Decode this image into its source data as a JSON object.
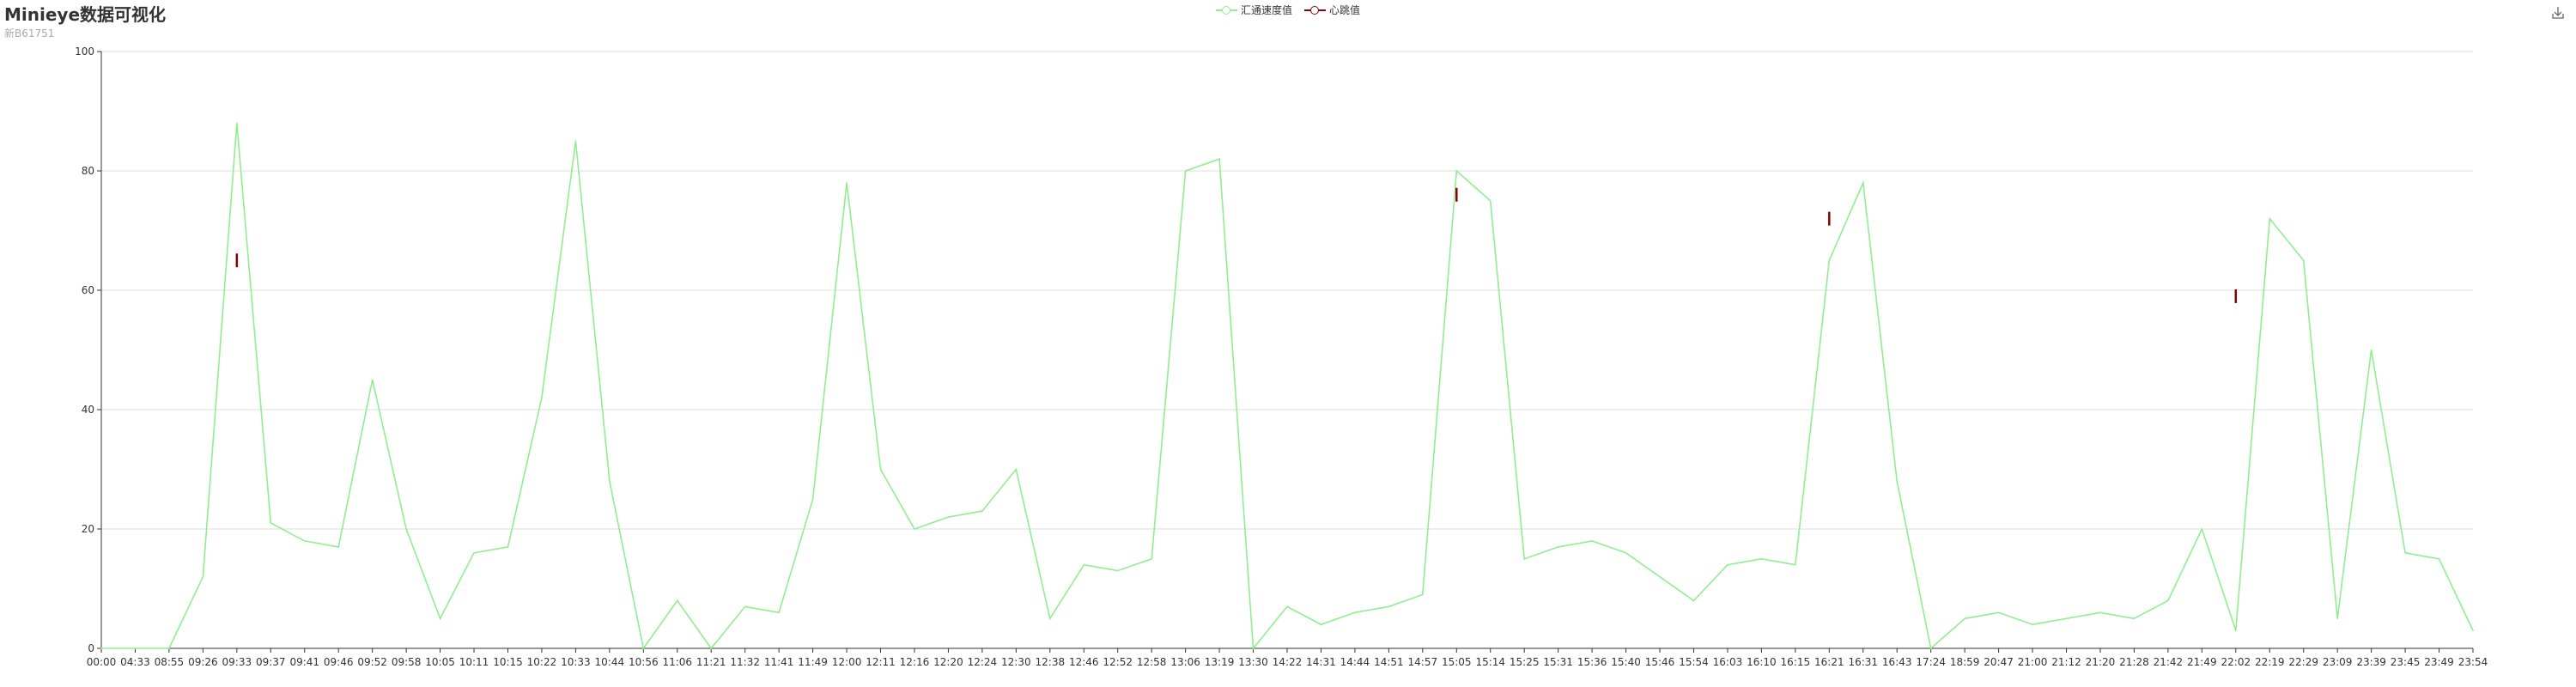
{
  "header": {
    "title": "Minieye数据可视化",
    "subtitle": "新B61751"
  },
  "toolbox": {
    "icon": "download-icon"
  },
  "colors": {
    "series0": "#90ee90",
    "series1": "#8b0000",
    "grid": "#dddddd",
    "axis": "#333333"
  },
  "chart_data": {
    "type": "line",
    "title": "Minieye数据可视化",
    "subtitle": "新B61751",
    "legend_position": "top-center",
    "ylim": [
      0,
      100
    ],
    "yticks": [
      0,
      20,
      40,
      60,
      80,
      100
    ],
    "grid": true,
    "x": [
      "00:00",
      "04:33",
      "08:55",
      "09:26",
      "09:33",
      "09:37",
      "09:41",
      "09:46",
      "09:52",
      "09:58",
      "10:05",
      "10:11",
      "10:15",
      "10:22",
      "10:33",
      "10:44",
      "10:56",
      "11:06",
      "11:21",
      "11:32",
      "11:41",
      "11:49",
      "12:00",
      "12:11",
      "12:16",
      "12:20",
      "12:24",
      "12:30",
      "12:38",
      "12:46",
      "12:52",
      "12:58",
      "13:06",
      "13:19",
      "13:30",
      "14:22",
      "14:31",
      "14:44",
      "14:51",
      "14:57",
      "15:05",
      "15:14",
      "15:25",
      "15:31",
      "15:36",
      "15:40",
      "15:46",
      "15:54",
      "16:03",
      "16:10",
      "16:15",
      "16:21",
      "16:31",
      "16:43",
      "17:24",
      "18:59",
      "20:47",
      "21:00",
      "21:12",
      "21:20",
      "21:28",
      "21:42",
      "21:49",
      "22:02",
      "22:19",
      "22:29",
      "23:09",
      "23:39",
      "23:45",
      "23:49",
      "23:54"
    ],
    "series": [
      {
        "name": "汇通速度值",
        "values": [
          0,
          0,
          0,
          12,
          88,
          21,
          18,
          17,
          45,
          20,
          5,
          16,
          17,
          42,
          85,
          28,
          0,
          8,
          0,
          7,
          6,
          25,
          78,
          30,
          20,
          22,
          23,
          30,
          5,
          14,
          13,
          15,
          80,
          82,
          0,
          7,
          4,
          6,
          7,
          9,
          80,
          75,
          15,
          17,
          18,
          16,
          12,
          8,
          14,
          15,
          14,
          65,
          78,
          28,
          0,
          5,
          6,
          4,
          5,
          6,
          5,
          8,
          20,
          3,
          72,
          65,
          5,
          50,
          16,
          15,
          3
        ]
      },
      {
        "name": "心跳值",
        "values": [
          null,
          null,
          null,
          null,
          65,
          null,
          null,
          null,
          null,
          null,
          null,
          null,
          null,
          null,
          null,
          null,
          null,
          null,
          null,
          null,
          null,
          null,
          null,
          null,
          null,
          null,
          null,
          null,
          null,
          null,
          null,
          null,
          null,
          null,
          null,
          null,
          null,
          null,
          null,
          null,
          76,
          null,
          null,
          null,
          null,
          null,
          null,
          null,
          null,
          null,
          null,
          72,
          null,
          null,
          null,
          null,
          null,
          null,
          null,
          null,
          null,
          null,
          null,
          59,
          null,
          null,
          null,
          null,
          null,
          null,
          null
        ]
      }
    ]
  }
}
